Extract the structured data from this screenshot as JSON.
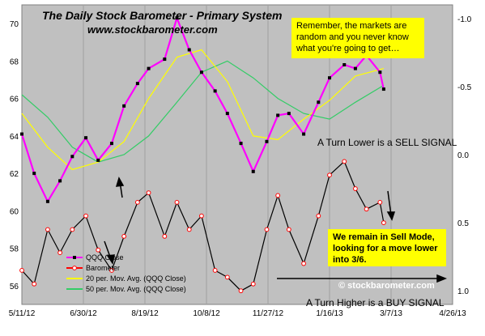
{
  "chart_data": {
    "type": "line",
    "title": "The Daily Stock Barometer - Primary System",
    "subtitle": "www.stockbarometer.com",
    "x_ticks": [
      "5/11/12",
      "6/30/12",
      "8/19/12",
      "10/8/12",
      "11/27/12",
      "1/16/13",
      "3/7/13",
      "4/26/13"
    ],
    "y_left": {
      "ticks": [
        "56",
        "58",
        "60",
        "62",
        "64",
        "66",
        "68",
        "70"
      ],
      "range": [
        55,
        71
      ]
    },
    "y_right": {
      "ticks": [
        "-1.0",
        "-0.5",
        "0.0",
        "0.5",
        "1.0"
      ],
      "range": [
        -1.1,
        1.1
      ],
      "inverted": true
    },
    "legend": {
      "placement": "bottom-left",
      "entries": [
        {
          "name": "QQQ Close",
          "color": "#ff00ff"
        },
        {
          "name": "Barometer",
          "color": "#ff0000"
        },
        {
          "name": "20 per. Mov. Avg. (QQQ Close)",
          "color": "#ffff00"
        },
        {
          "name": "50 per. Mov. Avg. (QQQ Close)",
          "color": "#33cc66"
        }
      ]
    },
    "series": [
      {
        "name": "QQQ Close",
        "axis": "left",
        "x": [
          "5/11/12",
          "5/21/12",
          "6/1/12",
          "6/11/12",
          "6/21/12",
          "7/2/12",
          "7/12/12",
          "7/23/12",
          "8/2/12",
          "8/13/12",
          "8/22/12",
          "9/4/12",
          "9/14/12",
          "9/24/12",
          "10/4/12",
          "10/15/12",
          "10/25/12",
          "11/5/12",
          "11/15/12",
          "11/26/12",
          "12/5/12",
          "12/14/12",
          "12/26/12",
          "1/7/13",
          "1/16/13",
          "1/28/13",
          "2/6/13",
          "2/15/13",
          "2/26/13",
          "3/1/13"
        ],
        "values": [
          64.1,
          62.0,
          60.5,
          61.6,
          62.9,
          63.9,
          62.7,
          63.6,
          65.6,
          66.8,
          67.6,
          68.1,
          70.3,
          68.6,
          67.4,
          66.4,
          65.2,
          63.6,
          62.1,
          63.7,
          65.1,
          65.2,
          64.1,
          65.8,
          67.1,
          67.8,
          67.6,
          68.3,
          67.4,
          66.5
        ]
      },
      {
        "name": "Barometer",
        "axis": "right",
        "x": [
          "5/11/12",
          "5/21/12",
          "6/1/12",
          "6/11/12",
          "6/21/12",
          "7/2/12",
          "7/12/12",
          "7/23/12",
          "8/2/12",
          "8/13/12",
          "8/22/12",
          "9/4/12",
          "9/14/12",
          "9/24/12",
          "10/4/12",
          "10/15/12",
          "10/25/12",
          "11/5/12",
          "11/15/12",
          "11/26/12",
          "12/5/12",
          "12/14/12",
          "12/26/12",
          "1/7/13",
          "1/16/13",
          "1/28/13",
          "2/6/13",
          "2/15/13",
          "2/26/13",
          "3/1/13"
        ],
        "values": [
          0.85,
          0.95,
          0.55,
          0.72,
          0.55,
          0.45,
          0.7,
          0.85,
          0.6,
          0.35,
          0.28,
          0.6,
          0.35,
          0.55,
          0.45,
          0.85,
          0.9,
          1.0,
          0.95,
          0.55,
          0.3,
          0.55,
          0.8,
          0.45,
          0.15,
          0.05,
          0.25,
          0.4,
          0.35,
          0.5
        ]
      },
      {
        "name": "20 per. Mov. Avg. (QQQ Close)",
        "axis": "left",
        "x": [
          "5/11/12",
          "6/1/12",
          "6/21/12",
          "7/12/12",
          "8/2/12",
          "8/22/12",
          "9/14/12",
          "10/4/12",
          "10/25/12",
          "11/15/12",
          "12/5/12",
          "12/26/12",
          "1/16/13",
          "2/6/13",
          "3/1/13"
        ],
        "values": [
          65.2,
          63.4,
          62.2,
          62.6,
          63.7,
          66.0,
          68.2,
          68.6,
          66.9,
          64.0,
          63.8,
          64.9,
          65.9,
          67.2,
          67.6
        ]
      },
      {
        "name": "50 per. Mov. Avg. (QQQ Close)",
        "axis": "left",
        "x": [
          "5/11/12",
          "6/1/12",
          "6/21/12",
          "7/12/12",
          "8/2/12",
          "8/22/12",
          "9/14/12",
          "10/4/12",
          "10/25/12",
          "11/15/12",
          "12/5/12",
          "12/26/12",
          "1/16/13",
          "2/6/13",
          "3/1/13"
        ],
        "values": [
          66.2,
          65.0,
          63.4,
          62.6,
          63.0,
          64.0,
          65.8,
          67.4,
          68.0,
          67.1,
          66.0,
          65.2,
          64.9,
          65.8,
          66.7
        ]
      }
    ],
    "annotations": [
      "Remember, the markets are random and you never know what you're going to get…",
      "A Turn Lower is a SELL  SIGNAL",
      "We remain in Sell Mode, looking for a move lower into 3/6.",
      "A Turn Higher is a BUY  SIGNAL",
      "© stockbarometer.com"
    ],
    "grid": true,
    "colors": {
      "plot_bg": "#c0c0c0",
      "qqq": "#ff00ff",
      "barometer": "#ff0000",
      "ma20": "#ffff00",
      "ma50": "#33cc66",
      "note_bg": "#ffff00"
    }
  },
  "notes": {
    "random": "Remember, the markets are random and you never know what you're going to get…",
    "sell_mode": "We remain in Sell Mode, looking for a move lower into 3/6.",
    "sell_signal": "A Turn Lower is a SELL  SIGNAL",
    "buy_signal": "A Turn Higher is a BUY  SIGNAL",
    "copyright": "© stockbarometer.com"
  }
}
